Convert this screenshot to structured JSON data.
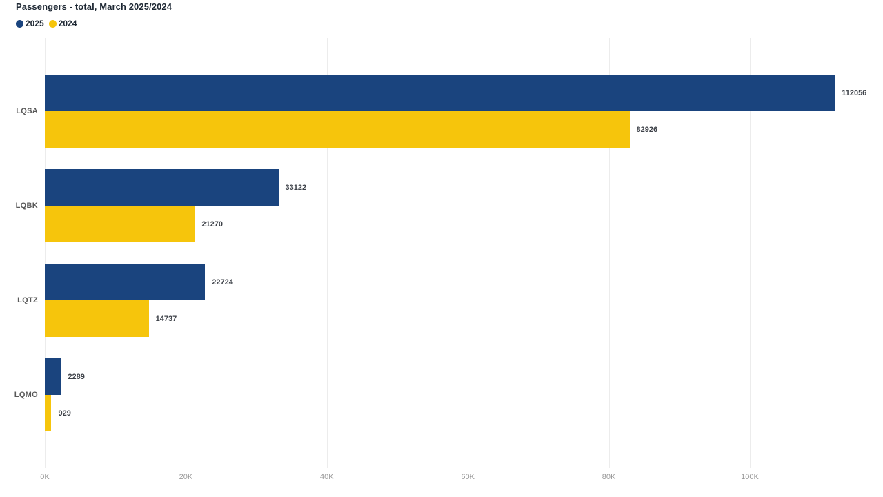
{
  "title": "Passengers - total, March 2025/2024",
  "chart_data": {
    "type": "bar",
    "orientation": "horizontal",
    "title": "Passengers - total, March 2025/2024",
    "categories": [
      "LQSA",
      "LQBK",
      "LQTZ",
      "LQMO"
    ],
    "series": [
      {
        "name": "2025",
        "color": "#1a447e",
        "values": [
          112056,
          33122,
          22724,
          2289
        ]
      },
      {
        "name": "2024",
        "color": "#f6c50c",
        "values": [
          82926,
          21270,
          14737,
          929
        ]
      }
    ],
    "xlabel": "",
    "ylabel": "",
    "x_ticks": [
      "0K",
      "20K",
      "40K",
      "60K",
      "80K",
      "100K"
    ],
    "x_tick_values": [
      0,
      20000,
      40000,
      60000,
      80000,
      100000
    ],
    "xlim": [
      0,
      118885
    ],
    "grid": true,
    "legend_position": "top-left",
    "value_labels": true
  }
}
